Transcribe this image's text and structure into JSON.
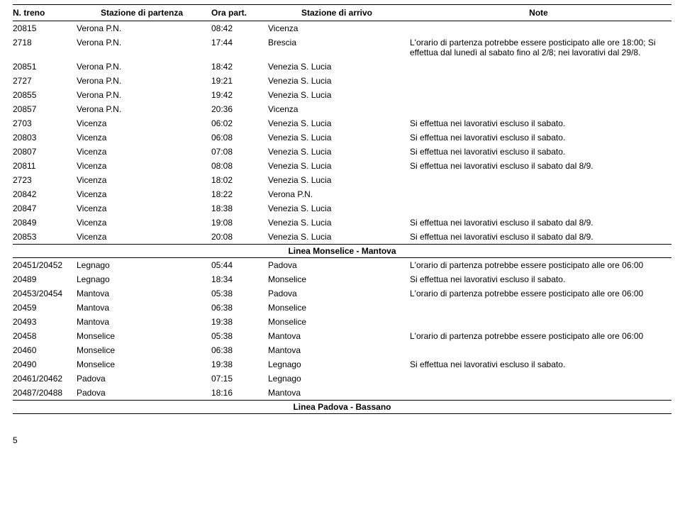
{
  "header": {
    "col_train": "N. treno",
    "col_departure_station": "Stazione di partenza",
    "col_departure_time": "Ora part.",
    "col_arrival_station": "Stazione di arrivo",
    "col_note": "Note"
  },
  "sections": [
    {
      "title": "",
      "rows": [
        {
          "train": "20815",
          "dep": "Verona P.N.",
          "time": "08:42",
          "arr": "Vicenza",
          "note": ""
        },
        {
          "train": "2718",
          "dep": "Verona P.N.",
          "time": "17:44",
          "arr": "Brescia",
          "note": "L'orario di partenza potrebbe essere posticipato alle ore 18:00; Si effettua dal lunedì al sabato fino al 2/8; nei lavorativi dal 29/8."
        },
        {
          "train": "20851",
          "dep": "Verona P.N.",
          "time": "18:42",
          "arr": "Venezia S. Lucia",
          "note": ""
        },
        {
          "train": "2727",
          "dep": "Verona P.N.",
          "time": "19:21",
          "arr": "Venezia S. Lucia",
          "note": ""
        },
        {
          "train": "20855",
          "dep": "Verona P.N.",
          "time": "19:42",
          "arr": "Venezia S. Lucia",
          "note": ""
        },
        {
          "train": "20857",
          "dep": "Verona P.N.",
          "time": "20:36",
          "arr": "Vicenza",
          "note": ""
        },
        {
          "train": "2703",
          "dep": "Vicenza",
          "time": "06:02",
          "arr": "Venezia S. Lucia",
          "note": "Si effettua nei lavorativi escluso il sabato."
        },
        {
          "train": "20803",
          "dep": "Vicenza",
          "time": "06:08",
          "arr": "Venezia S. Lucia",
          "note": "Si effettua nei lavorativi escluso il sabato."
        },
        {
          "train": "20807",
          "dep": "Vicenza",
          "time": "07:08",
          "arr": "Venezia S. Lucia",
          "note": "Si effettua nei lavorativi escluso il sabato."
        },
        {
          "train": "20811",
          "dep": "Vicenza",
          "time": "08:08",
          "arr": "Venezia S. Lucia",
          "note": "Si effettua nei lavorativi escluso il sabato dal 8/9."
        },
        {
          "train": "2723",
          "dep": "Vicenza",
          "time": "18:02",
          "arr": "Venezia S. Lucia",
          "note": ""
        },
        {
          "train": "20842",
          "dep": "Vicenza",
          "time": "18:22",
          "arr": "Verona P.N.",
          "note": ""
        },
        {
          "train": "20847",
          "dep": "Vicenza",
          "time": "18:38",
          "arr": "Venezia S. Lucia",
          "note": ""
        },
        {
          "train": "20849",
          "dep": "Vicenza",
          "time": "19:08",
          "arr": "Venezia S. Lucia",
          "note": "Si effettua nei lavorativi escluso il sabato dal 8/9."
        },
        {
          "train": "20853",
          "dep": "Vicenza",
          "time": "20:08",
          "arr": "Venezia S. Lucia",
          "note": "Si effettua nei lavorativi escluso il sabato dal 8/9."
        }
      ]
    },
    {
      "title": "Linea Monselice - Mantova",
      "rows": [
        {
          "train": "20451/20452",
          "dep": "Legnago",
          "time": "05:44",
          "arr": "Padova",
          "note": "L'orario di partenza potrebbe essere posticipato alle ore 06:00"
        },
        {
          "train": "20489",
          "dep": "Legnago",
          "time": "18:34",
          "arr": "Monselice",
          "note": "Si effettua nei lavorativi escluso il sabato."
        },
        {
          "train": "20453/20454",
          "dep": "Mantova",
          "time": "05:38",
          "arr": "Padova",
          "note": "L'orario di partenza potrebbe essere posticipato alle ore 06:00"
        },
        {
          "train": "20459",
          "dep": "Mantova",
          "time": "06:38",
          "arr": "Monselice",
          "note": ""
        },
        {
          "train": "20493",
          "dep": "Mantova",
          "time": "19:38",
          "arr": "Monselice",
          "note": ""
        },
        {
          "train": "20458",
          "dep": "Monselice",
          "time": "05:38",
          "arr": "Mantova",
          "note": "L'orario di partenza potrebbe essere posticipato alle ore 06:00"
        },
        {
          "train": "20460",
          "dep": "Monselice",
          "time": "06:38",
          "arr": "Mantova",
          "note": ""
        },
        {
          "train": "20490",
          "dep": "Monselice",
          "time": "19:38",
          "arr": "Legnago",
          "note": "Si effettua nei lavorativi escluso il sabato."
        },
        {
          "train": "20461/20462",
          "dep": "Padova",
          "time": "07:15",
          "arr": "Legnago",
          "note": ""
        },
        {
          "train": "20487/20488",
          "dep": "Padova",
          "time": "18:16",
          "arr": "Mantova",
          "note": ""
        }
      ]
    },
    {
      "title": "Linea Padova - Bassano",
      "rows": []
    }
  ],
  "page_number": "5",
  "style": {
    "text_color": "#000000",
    "background_color": "#ffffff",
    "border_color": "#000000",
    "font_family": "Arial, Helvetica, sans-serif",
    "font_size_pt": 9
  }
}
